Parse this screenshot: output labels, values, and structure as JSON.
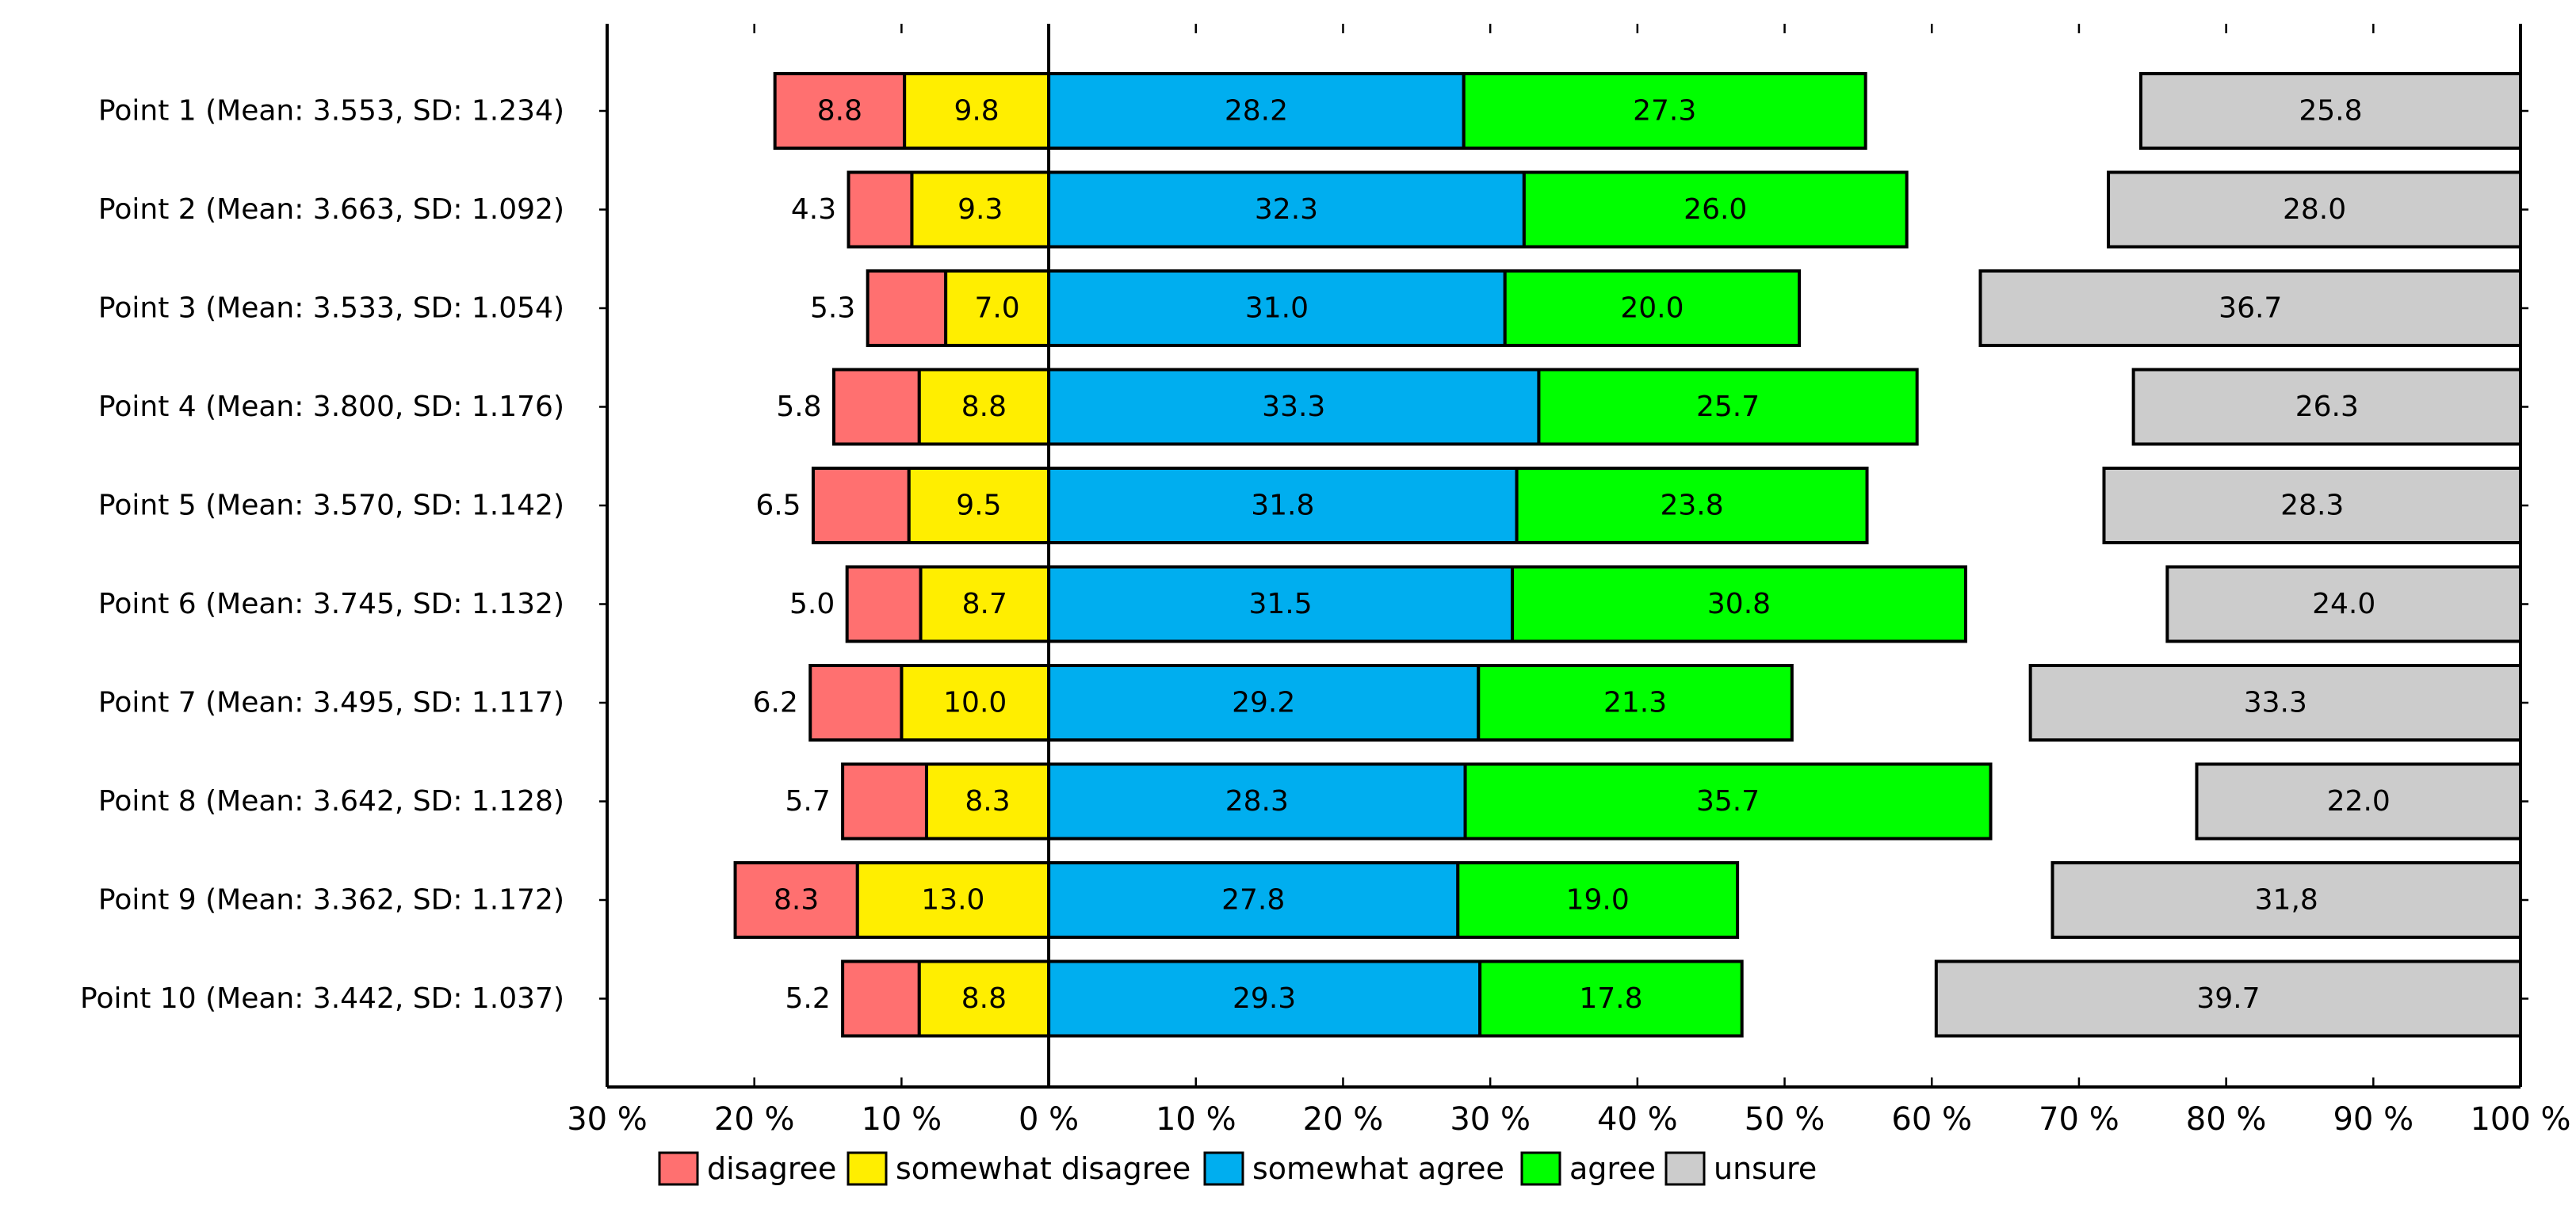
{
  "chart_data": {
    "type": "bar",
    "orientation": "horizontal",
    "stacking": "diverging",
    "categories": [
      "Point 1 (Mean: 3.553, SD: 1.234)",
      "Point 2 (Mean: 3.663, SD: 1.092)",
      "Point 3 (Mean: 3.533, SD: 1.054)",
      "Point 4 (Mean: 3.800, SD: 1.176)",
      "Point 5 (Mean: 3.570, SD: 1.142)",
      "Point 6 (Mean: 3.745, SD: 1.132)",
      "Point 7 (Mean: 3.495, SD: 1.117)",
      "Point 8 (Mean: 3.642, SD: 1.128)",
      "Point 9 (Mean: 3.362, SD: 1.172)",
      "Point 10 (Mean: 3.442, SD: 1.037)"
    ],
    "series": [
      {
        "name": "disagree",
        "color": "#ff7070",
        "side": "negative",
        "values": [
          8.8,
          4.3,
          5.3,
          5.8,
          6.5,
          5.0,
          6.2,
          5.7,
          8.3,
          5.2
        ],
        "labels": [
          "8.8",
          "4.3",
          "5.3",
          "5.8",
          "6.5",
          "5.0",
          "6.2",
          "5.7",
          "8.3",
          "5.2"
        ]
      },
      {
        "name": "somewhat disagree",
        "color": "#ffee00",
        "side": "negative",
        "values": [
          9.8,
          9.3,
          7.0,
          8.8,
          9.5,
          8.7,
          10.0,
          8.3,
          13.0,
          8.8
        ],
        "labels": [
          "9.8",
          "9.3",
          "7.0",
          "8.8",
          "9.5",
          "8.7",
          "10.0",
          "8.3",
          "13.0",
          "8.8"
        ]
      },
      {
        "name": "somewhat agree",
        "color": "#00aeef",
        "side": "positive",
        "values": [
          28.2,
          32.3,
          31.0,
          33.3,
          31.8,
          31.5,
          29.2,
          28.3,
          27.8,
          29.3
        ],
        "labels": [
          "28.2",
          "32.3",
          "31.0",
          "33.3",
          "31.8",
          "31.5",
          "29.2",
          "28.3",
          "27.8",
          "29.3"
        ]
      },
      {
        "name": "agree",
        "color": "#00ff00",
        "side": "positive",
        "values": [
          27.3,
          26.0,
          20.0,
          25.7,
          23.8,
          30.8,
          21.3,
          35.7,
          19.0,
          17.8
        ],
        "labels": [
          "27.3",
          "26.0",
          "20.0",
          "25.7",
          "23.8",
          "30.8",
          "21.3",
          "35.7",
          "19.0",
          "17.8"
        ]
      },
      {
        "name": "unsure",
        "color": "#cccccc",
        "side": "right-aligned",
        "values": [
          25.8,
          28.0,
          36.7,
          26.3,
          28.3,
          24.0,
          33.3,
          22.0,
          31.8,
          39.7
        ],
        "labels": [
          "25.8",
          "28.0",
          "36.7",
          "26.3",
          "28.3",
          "24.0",
          "33.3",
          "22.0",
          "31,8",
          "39.7"
        ]
      }
    ],
    "xlim": [
      -30,
      100
    ],
    "xticks": [
      -30,
      -20,
      -10,
      0,
      10,
      20,
      30,
      40,
      50,
      60,
      70,
      80,
      90,
      100
    ],
    "xtick_labels": [
      "30 %",
      "20 %",
      "10 %",
      "0 %",
      "10 %",
      "20 %",
      "30 %",
      "40 %",
      "50 %",
      "60 %",
      "70 %",
      "80 %",
      "90 %",
      "100 %"
    ],
    "unit_suffix": "%",
    "title": "",
    "xlabel": "",
    "ylabel": "",
    "legend": {
      "position": "bottom",
      "entries": [
        "disagree",
        "somewhat disagree",
        "somewhat agree",
        "agree",
        "unsure"
      ]
    },
    "grid": false
  }
}
